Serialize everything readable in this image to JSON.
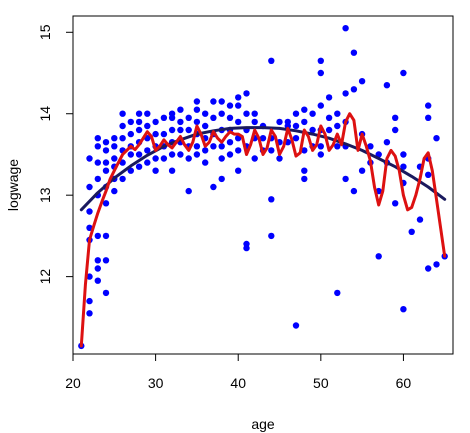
{
  "chart_data": {
    "type": "scatter",
    "xlabel": "age",
    "ylabel": "logwage",
    "xlim": [
      20,
      66
    ],
    "ylim": [
      11.05,
      15.2
    ],
    "x_ticks": [
      20,
      30,
      40,
      50,
      60
    ],
    "y_ticks": [
      12,
      13,
      14,
      15
    ],
    "point_color": "#0000ff",
    "points": [
      [
        21,
        11.15
      ],
      [
        22,
        11.55
      ],
      [
        22,
        11.7
      ],
      [
        22,
        12.0
      ],
      [
        22,
        12.45
      ],
      [
        22,
        12.6
      ],
      [
        22,
        12.8
      ],
      [
        22,
        13.1
      ],
      [
        22,
        13.45
      ],
      [
        23,
        11.95
      ],
      [
        23,
        12.1
      ],
      [
        23,
        12.2
      ],
      [
        23,
        12.5
      ],
      [
        23,
        13.0
      ],
      [
        23,
        13.2
      ],
      [
        23,
        13.4
      ],
      [
        23,
        13.6
      ],
      [
        23,
        13.7
      ],
      [
        24,
        11.8
      ],
      [
        24,
        12.2
      ],
      [
        24,
        12.5
      ],
      [
        24,
        12.9
      ],
      [
        24,
        13.1
      ],
      [
        24,
        13.3
      ],
      [
        24,
        13.4
      ],
      [
        24,
        13.55
      ],
      [
        24,
        13.65
      ],
      [
        25,
        13.05
      ],
      [
        25,
        13.2
      ],
      [
        25,
        13.35
      ],
      [
        25,
        13.45
      ],
      [
        25,
        13.6
      ],
      [
        25,
        13.7
      ],
      [
        26,
        13.2
      ],
      [
        26,
        13.4
      ],
      [
        26,
        13.55
      ],
      [
        26,
        13.7
      ],
      [
        26,
        13.85
      ],
      [
        26,
        14.0
      ],
      [
        27,
        13.3
      ],
      [
        27,
        13.5
      ],
      [
        27,
        13.6
      ],
      [
        27,
        13.75
      ],
      [
        27,
        13.9
      ],
      [
        28,
        13.35
      ],
      [
        28,
        13.5
      ],
      [
        28,
        13.65
      ],
      [
        28,
        13.8
      ],
      [
        28,
        13.9
      ],
      [
        28,
        14.0
      ],
      [
        29,
        13.4
      ],
      [
        29,
        13.55
      ],
      [
        29,
        13.7
      ],
      [
        29,
        13.85
      ],
      [
        29,
        14.0
      ],
      [
        30,
        13.3
      ],
      [
        30,
        13.45
      ],
      [
        30,
        13.6
      ],
      [
        30,
        13.75
      ],
      [
        30,
        13.9
      ],
      [
        31,
        13.45
      ],
      [
        31,
        13.6
      ],
      [
        31,
        13.75
      ],
      [
        31,
        13.95
      ],
      [
        32,
        13.3
      ],
      [
        32,
        13.5
      ],
      [
        32,
        13.65
      ],
      [
        32,
        13.8
      ],
      [
        32,
        13.95
      ],
      [
        32,
        14.0
      ],
      [
        33,
        13.5
      ],
      [
        33,
        13.65
      ],
      [
        33,
        13.8
      ],
      [
        33,
        13.9
      ],
      [
        33,
        14.05
      ],
      [
        34,
        13.05
      ],
      [
        34,
        13.45
      ],
      [
        34,
        13.6
      ],
      [
        34,
        13.8
      ],
      [
        34,
        13.95
      ],
      [
        35,
        13.5
      ],
      [
        35,
        13.6
      ],
      [
        35,
        13.75
      ],
      [
        35,
        13.9
      ],
      [
        35,
        14.05
      ],
      [
        35,
        14.15
      ],
      [
        36,
        13.4
      ],
      [
        36,
        13.55
      ],
      [
        36,
        13.7
      ],
      [
        36,
        13.85
      ],
      [
        36,
        14.0
      ],
      [
        37,
        13.1
      ],
      [
        37,
        13.6
      ],
      [
        37,
        13.75
      ],
      [
        37,
        13.95
      ],
      [
        37,
        14.15
      ],
      [
        38,
        13.2
      ],
      [
        38,
        13.45
      ],
      [
        38,
        13.6
      ],
      [
        38,
        13.8
      ],
      [
        38,
        14.0
      ],
      [
        38,
        14.15
      ],
      [
        39,
        13.5
      ],
      [
        39,
        13.65
      ],
      [
        39,
        13.8
      ],
      [
        39,
        13.95
      ],
      [
        39,
        14.1
      ],
      [
        40,
        13.3
      ],
      [
        40,
        13.55
      ],
      [
        40,
        13.7
      ],
      [
        40,
        13.9
      ],
      [
        40,
        14.1
      ],
      [
        40,
        14.2
      ],
      [
        41,
        12.35
      ],
      [
        41,
        12.4
      ],
      [
        41,
        13.6
      ],
      [
        41,
        13.8
      ],
      [
        41,
        14.0
      ],
      [
        41,
        14.25
      ],
      [
        42,
        13.45
      ],
      [
        42,
        13.7
      ],
      [
        42,
        13.9
      ],
      [
        42,
        14.0
      ],
      [
        43,
        13.55
      ],
      [
        43,
        13.7
      ],
      [
        43,
        13.85
      ],
      [
        44,
        12.5
      ],
      [
        44,
        12.95
      ],
      [
        44,
        13.55
      ],
      [
        44,
        13.7
      ],
      [
        44,
        14.65
      ],
      [
        45,
        13.45
      ],
      [
        45,
        13.65
      ],
      [
        45,
        13.9
      ],
      [
        46,
        13.65
      ],
      [
        46,
        13.85
      ],
      [
        46,
        13.9
      ],
      [
        47,
        11.4
      ],
      [
        47,
        13.7
      ],
      [
        47,
        13.85
      ],
      [
        47,
        14.0
      ],
      [
        48,
        13.2
      ],
      [
        48,
        13.3
      ],
      [
        48,
        13.55
      ],
      [
        48,
        13.9
      ],
      [
        48,
        14.05
      ],
      [
        49,
        13.6
      ],
      [
        49,
        13.8
      ],
      [
        49,
        14.0
      ],
      [
        50,
        13.5
      ],
      [
        50,
        13.6
      ],
      [
        50,
        13.8
      ],
      [
        50,
        14.1
      ],
      [
        50,
        14.5
      ],
      [
        50,
        14.65
      ],
      [
        51,
        13.8
      ],
      [
        51,
        13.95
      ],
      [
        51,
        14.2
      ],
      [
        52,
        11.8
      ],
      [
        52,
        13.6
      ],
      [
        52,
        13.85
      ],
      [
        52,
        14.0
      ],
      [
        53,
        13.2
      ],
      [
        53,
        13.6
      ],
      [
        53,
        13.9
      ],
      [
        53,
        14.25
      ],
      [
        53,
        15.05
      ],
      [
        54,
        13.05
      ],
      [
        54,
        14.3
      ],
      [
        54,
        14.75
      ],
      [
        55,
        13.3
      ],
      [
        55,
        13.75
      ],
      [
        55,
        14.4
      ],
      [
        56,
        13.4
      ],
      [
        56,
        13.6
      ],
      [
        57,
        12.25
      ],
      [
        57,
        13.05
      ],
      [
        57,
        13.5
      ],
      [
        58,
        13.4
      ],
      [
        58,
        13.65
      ],
      [
        58,
        14.35
      ],
      [
        59,
        12.9
      ],
      [
        59,
        13.8
      ],
      [
        59,
        13.95
      ],
      [
        60,
        11.6
      ],
      [
        60,
        13.15
      ],
      [
        60,
        13.35
      ],
      [
        60,
        13.5
      ],
      [
        60,
        14.5
      ],
      [
        61,
        12.55
      ],
      [
        62,
        12.7
      ],
      [
        62,
        13.35
      ],
      [
        63,
        12.1
      ],
      [
        63,
        13.25
      ],
      [
        63,
        13.45
      ],
      [
        63,
        13.95
      ],
      [
        63,
        14.1
      ],
      [
        64,
        12.15
      ],
      [
        64,
        13.7
      ],
      [
        65,
        12.25
      ]
    ],
    "series": [
      {
        "kind": "smooth-fit",
        "color": "#1a1a5e",
        "x": [
          21,
          23,
          25,
          27,
          29,
          31,
          33,
          35,
          37,
          39,
          41,
          43,
          45,
          47,
          49,
          51,
          53,
          55,
          57,
          59,
          61,
          63,
          65
        ],
        "y": [
          12.82,
          13.03,
          13.21,
          13.36,
          13.49,
          13.6,
          13.68,
          13.75,
          13.79,
          13.82,
          13.83,
          13.83,
          13.82,
          13.79,
          13.75,
          13.7,
          13.63,
          13.55,
          13.45,
          13.35,
          13.23,
          13.1,
          12.95
        ]
      },
      {
        "kind": "wiggly-fit",
        "color": "#dd1111",
        "x": [
          21,
          21.5,
          22,
          22.5,
          23,
          23.5,
          24,
          24.5,
          25,
          25.5,
          26,
          26.5,
          27,
          27.5,
          28,
          28.5,
          29,
          29.5,
          30,
          30.5,
          31,
          31.5,
          32,
          32.5,
          33,
          33.5,
          34,
          34.5,
          35,
          35.5,
          36,
          36.5,
          37,
          37.5,
          38,
          38.5,
          39,
          39.5,
          40,
          40.5,
          41,
          41.5,
          42,
          42.5,
          43,
          43.5,
          44,
          44.5,
          45,
          45.5,
          46,
          46.5,
          47,
          47.5,
          48,
          48.5,
          49,
          49.5,
          50,
          50.5,
          51,
          51.5,
          52,
          52.5,
          53,
          53.5,
          54,
          54.5,
          55,
          55.5,
          56,
          56.5,
          57,
          57.5,
          58,
          58.5,
          59,
          59.5,
          60,
          60.5,
          61,
          61.5,
          62,
          62.5,
          63,
          63.5,
          64,
          64.5,
          65
        ],
        "y": [
          11.15,
          11.9,
          12.45,
          12.62,
          12.78,
          12.92,
          13.05,
          13.2,
          13.3,
          13.4,
          13.5,
          13.55,
          13.6,
          13.56,
          13.62,
          13.7,
          13.78,
          13.72,
          13.55,
          13.6,
          13.68,
          13.62,
          13.58,
          13.65,
          13.72,
          13.62,
          13.55,
          13.65,
          13.85,
          13.75,
          13.6,
          13.65,
          13.78,
          13.7,
          13.65,
          13.72,
          13.78,
          13.75,
          13.75,
          13.72,
          13.5,
          13.62,
          13.8,
          13.7,
          13.5,
          13.58,
          13.8,
          13.72,
          13.5,
          13.6,
          13.82,
          13.68,
          13.48,
          13.52,
          13.8,
          13.72,
          13.55,
          13.62,
          13.85,
          13.75,
          13.55,
          13.62,
          13.75,
          13.62,
          13.9,
          14.0,
          13.92,
          13.55,
          13.75,
          13.6,
          13.42,
          13.1,
          12.88,
          13.05,
          13.45,
          13.55,
          13.48,
          13.3,
          13.0,
          12.82,
          12.85,
          13.0,
          13.2,
          13.45,
          13.52,
          13.3,
          12.95,
          12.6,
          12.25
        ]
      }
    ]
  }
}
